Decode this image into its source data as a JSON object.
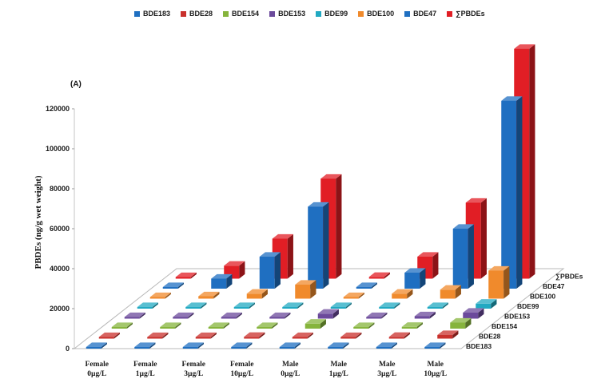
{
  "chart_data": {
    "type": "bar",
    "subtype": "3d-clustered-bar",
    "panel_label": "(A)",
    "ylabel": "PBDEs (ng/g wet weight)",
    "xlabel": "",
    "ylim": [
      0,
      120000
    ],
    "yticks": [
      "0",
      "20000",
      "40000",
      "60000",
      "80000",
      "100000",
      "120000"
    ],
    "grid": false,
    "legend_position": "top",
    "categories": [
      "Female 0µg/L",
      "Female 1µg/L",
      "Female 3µg/L",
      "Female 10µg/L",
      "Male 0µg/L",
      "Male 1µg/L",
      "Male 3µg/L",
      "Male 10µg/L"
    ],
    "category_lines": [
      [
        "Female",
        "0µg/L"
      ],
      [
        "Female",
        "1µg/L"
      ],
      [
        "Female",
        "3µg/L"
      ],
      [
        "Female",
        "10µg/L"
      ],
      [
        "Male",
        "0µg/L"
      ],
      [
        "Male",
        "1µg/L"
      ],
      [
        "Male",
        "3µg/L"
      ],
      [
        "Male",
        "10µg/L"
      ]
    ],
    "series": [
      {
        "name": "BDE183",
        "color": "#1f6fc1",
        "values": [
          300,
          300,
          300,
          300,
          300,
          300,
          300,
          300
        ]
      },
      {
        "name": "BDE28",
        "color": "#c9302c",
        "values": [
          600,
          600,
          600,
          900,
          600,
          600,
          900,
          1800
        ]
      },
      {
        "name": "BDE154",
        "color": "#86b43c",
        "values": [
          300,
          300,
          300,
          300,
          2500,
          400,
          900,
          3000
        ]
      },
      {
        "name": "BDE153",
        "color": "#6b4a9b",
        "values": [
          300,
          300,
          300,
          500,
          2500,
          400,
          1200,
          3000
        ]
      },
      {
        "name": "BDE99",
        "color": "#21a9c2",
        "values": [
          300,
          300,
          300,
          300,
          300,
          300,
          500,
          2500
        ]
      },
      {
        "name": "BDE100",
        "color": "#f08a2c",
        "values": [
          300,
          1200,
          2500,
          7000,
          500,
          2500,
          4500,
          14000
        ]
      },
      {
        "name": "BDE47",
        "color": "#1f6fc1",
        "values": [
          500,
          5000,
          16000,
          41000,
          600,
          8000,
          30000,
          94000
        ]
      },
      {
        "name": "∑PBDEs",
        "color": "#e11e25",
        "values": [
          800,
          6500,
          20000,
          50000,
          900,
          11000,
          38000,
          115000
        ]
      }
    ]
  }
}
